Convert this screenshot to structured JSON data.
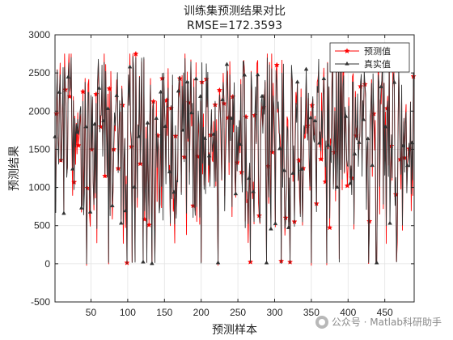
{
  "chart_data": {
    "type": "line",
    "title": "训练集预测结果对比",
    "subtitle": "RMSE=172.3593",
    "xlabel": "预测样本",
    "ylabel": "预测结果",
    "xlim": [
      1,
      490
    ],
    "ylim": [
      -500,
      3000
    ],
    "xticks": [
      50,
      100,
      150,
      200,
      250,
      300,
      350,
      400,
      450
    ],
    "yticks": [
      -500,
      0,
      500,
      1000,
      1500,
      2000,
      2500,
      3000
    ],
    "grid": true,
    "legend_position": "top-right",
    "series": [
      {
        "name": "预测值",
        "color": "#ff0000",
        "marker": "star",
        "values": []
      },
      {
        "name": "真实值",
        "color": "#333333",
        "marker": "triangle-up",
        "values": []
      }
    ]
  },
  "watermark": {
    "text": "公众号 · Matlab科研助手",
    "icon": "wechat-icon"
  }
}
